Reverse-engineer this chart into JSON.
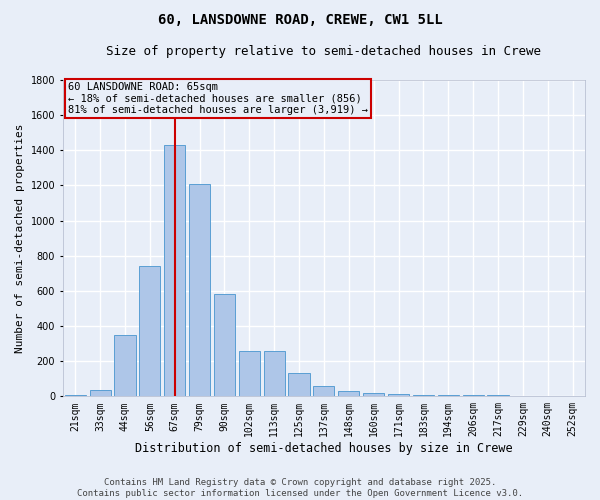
{
  "title": "60, LANSDOWNE ROAD, CREWE, CW1 5LL",
  "subtitle": "Size of property relative to semi-detached houses in Crewe",
  "xlabel": "Distribution of semi-detached houses by size in Crewe",
  "ylabel": "Number of semi-detached properties",
  "categories": [
    "21sqm",
    "33sqm",
    "44sqm",
    "56sqm",
    "67sqm",
    "79sqm",
    "90sqm",
    "102sqm",
    "113sqm",
    "125sqm",
    "137sqm",
    "148sqm",
    "160sqm",
    "171sqm",
    "183sqm",
    "194sqm",
    "206sqm",
    "217sqm",
    "229sqm",
    "240sqm",
    "252sqm"
  ],
  "values": [
    10,
    35,
    350,
    740,
    1430,
    1210,
    580,
    260,
    260,
    130,
    60,
    30,
    20,
    15,
    10,
    5,
    5,
    5,
    3,
    3,
    3
  ],
  "bar_color": "#aec6e8",
  "bar_edge_color": "#5a9fd4",
  "highlight_index": 4,
  "highlight_line_color": "#cc0000",
  "annotation_box_text": "60 LANSDOWNE ROAD: 65sqm\n← 18% of semi-detached houses are smaller (856)\n81% of semi-detached houses are larger (3,919) →",
  "annotation_box_color": "#cc0000",
  "ylim": [
    0,
    1800
  ],
  "yticks": [
    0,
    200,
    400,
    600,
    800,
    1000,
    1200,
    1400,
    1600,
    1800
  ],
  "bg_color": "#e8eef8",
  "grid_color": "#ffffff",
  "footnote": "Contains HM Land Registry data © Crown copyright and database right 2025.\nContains public sector information licensed under the Open Government Licence v3.0.",
  "title_fontsize": 10,
  "subtitle_fontsize": 9,
  "xlabel_fontsize": 8.5,
  "ylabel_fontsize": 8,
  "tick_fontsize": 7,
  "footnote_fontsize": 6.5,
  "ann_fontsize": 7.5
}
